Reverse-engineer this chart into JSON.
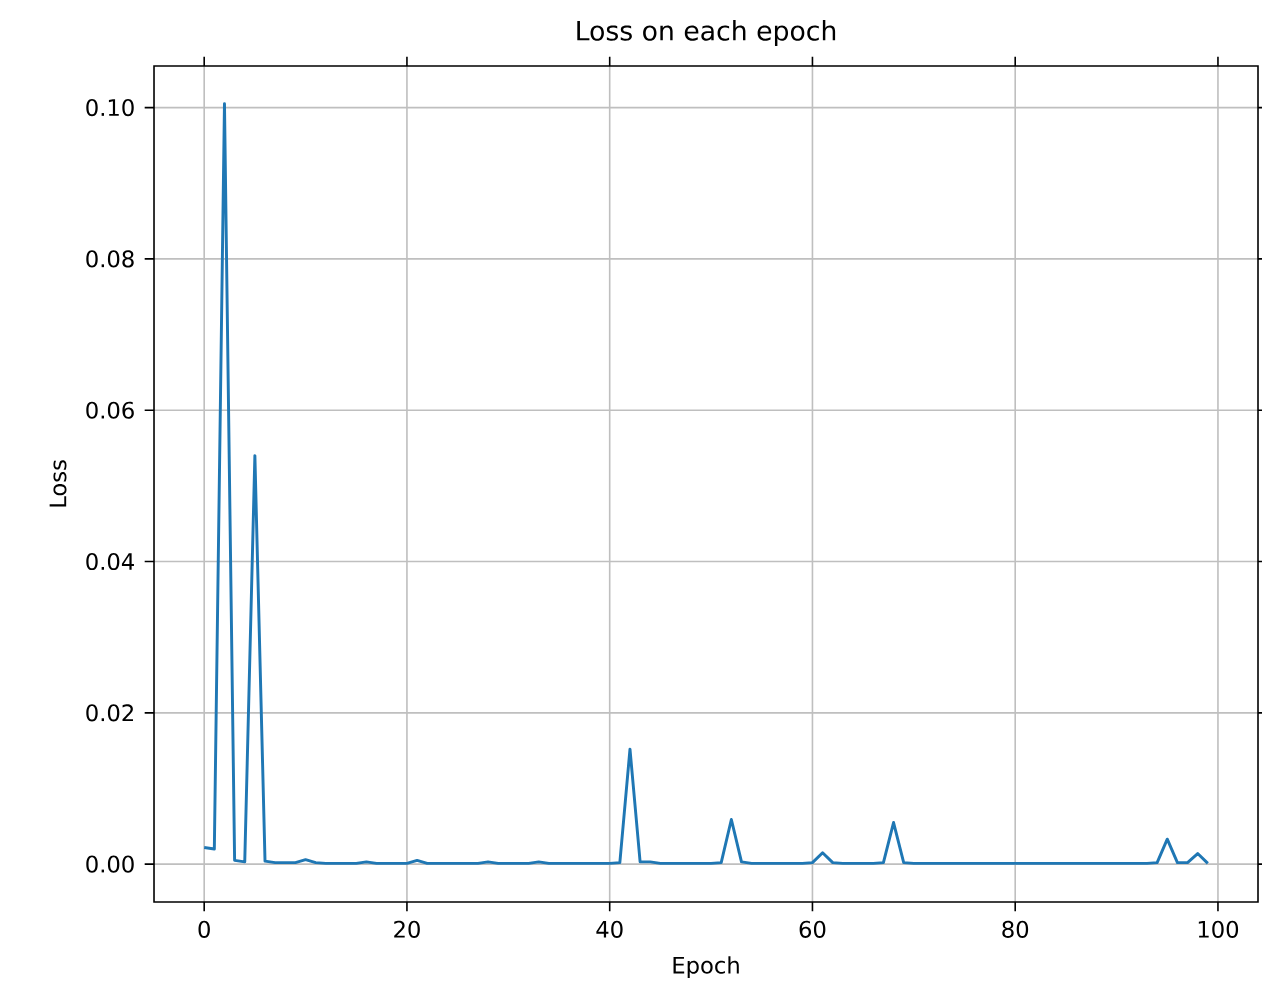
{
  "chart_data": {
    "type": "line",
    "title": "Loss on each epoch",
    "xlabel": "Epoch",
    "ylabel": "Loss",
    "x": [
      0,
      1,
      2,
      3,
      4,
      5,
      6,
      7,
      8,
      9,
      10,
      11,
      12,
      13,
      14,
      15,
      16,
      17,
      18,
      19,
      20,
      21,
      22,
      23,
      24,
      25,
      26,
      27,
      28,
      29,
      30,
      31,
      32,
      33,
      34,
      35,
      36,
      37,
      38,
      39,
      40,
      41,
      42,
      43,
      44,
      45,
      46,
      47,
      48,
      49,
      50,
      51,
      52,
      53,
      54,
      55,
      56,
      57,
      58,
      59,
      60,
      61,
      62,
      63,
      64,
      65,
      66,
      67,
      68,
      69,
      70,
      71,
      72,
      73,
      74,
      75,
      76,
      77,
      78,
      79,
      80,
      81,
      82,
      83,
      84,
      85,
      86,
      87,
      88,
      89,
      90,
      91,
      92,
      93,
      94,
      95,
      96,
      97,
      98,
      99
    ],
    "series": [
      {
        "color": "#1f77b4",
        "values": [
          0.0022,
          0.002,
          0.1005,
          0.0005,
          0.0003,
          0.054,
          0.0004,
          0.0002,
          0.0002,
          0.0002,
          0.0006,
          0.0002,
          0.0001,
          0.0001,
          0.0001,
          0.0001,
          0.0003,
          0.0001,
          0.0001,
          0.0001,
          0.0001,
          0.0005,
          0.0001,
          0.0001,
          0.0001,
          0.0001,
          0.0001,
          0.0001,
          0.0003,
          0.0001,
          0.0001,
          0.0001,
          0.0001,
          0.0003,
          0.0001,
          0.0001,
          0.0001,
          0.0001,
          0.0001,
          0.0001,
          0.0001,
          0.0002,
          0.0152,
          0.0003,
          0.0003,
          0.0001,
          0.0001,
          0.0001,
          0.0001,
          0.0001,
          0.0001,
          0.0002,
          0.0059,
          0.0003,
          0.0001,
          0.0001,
          0.0001,
          0.0001,
          0.0001,
          0.0001,
          0.0002,
          0.0015,
          0.0002,
          0.0001,
          0.0001,
          0.0001,
          0.0001,
          0.0002,
          0.0055,
          0.0002,
          0.0001,
          0.0001,
          0.0001,
          0.0001,
          0.0001,
          0.0001,
          0.0001,
          0.0001,
          0.0001,
          0.0001,
          0.0001,
          0.0001,
          0.0001,
          0.0001,
          0.0001,
          0.0001,
          0.0001,
          0.0001,
          0.0001,
          0.0001,
          0.0001,
          0.0001,
          0.0001,
          0.0001,
          0.0002,
          0.0033,
          0.0002,
          0.0002,
          0.0014,
          0.0001
        ]
      }
    ],
    "xlim": [
      -4.95,
      103.95
    ],
    "ylim": [
      -0.005,
      0.1055
    ],
    "xticks": [
      0,
      20,
      40,
      60,
      80,
      100
    ],
    "yticks": [
      {
        "value": 0,
        "label": "0.00"
      },
      {
        "value": 0.02,
        "label": "0.02"
      },
      {
        "value": 0.04,
        "label": "0.04"
      },
      {
        "value": 0.06,
        "label": "0.06"
      },
      {
        "value": 0.08,
        "label": "0.08"
      },
      {
        "value": 0.1,
        "label": "0.10"
      }
    ],
    "grid": true
  }
}
